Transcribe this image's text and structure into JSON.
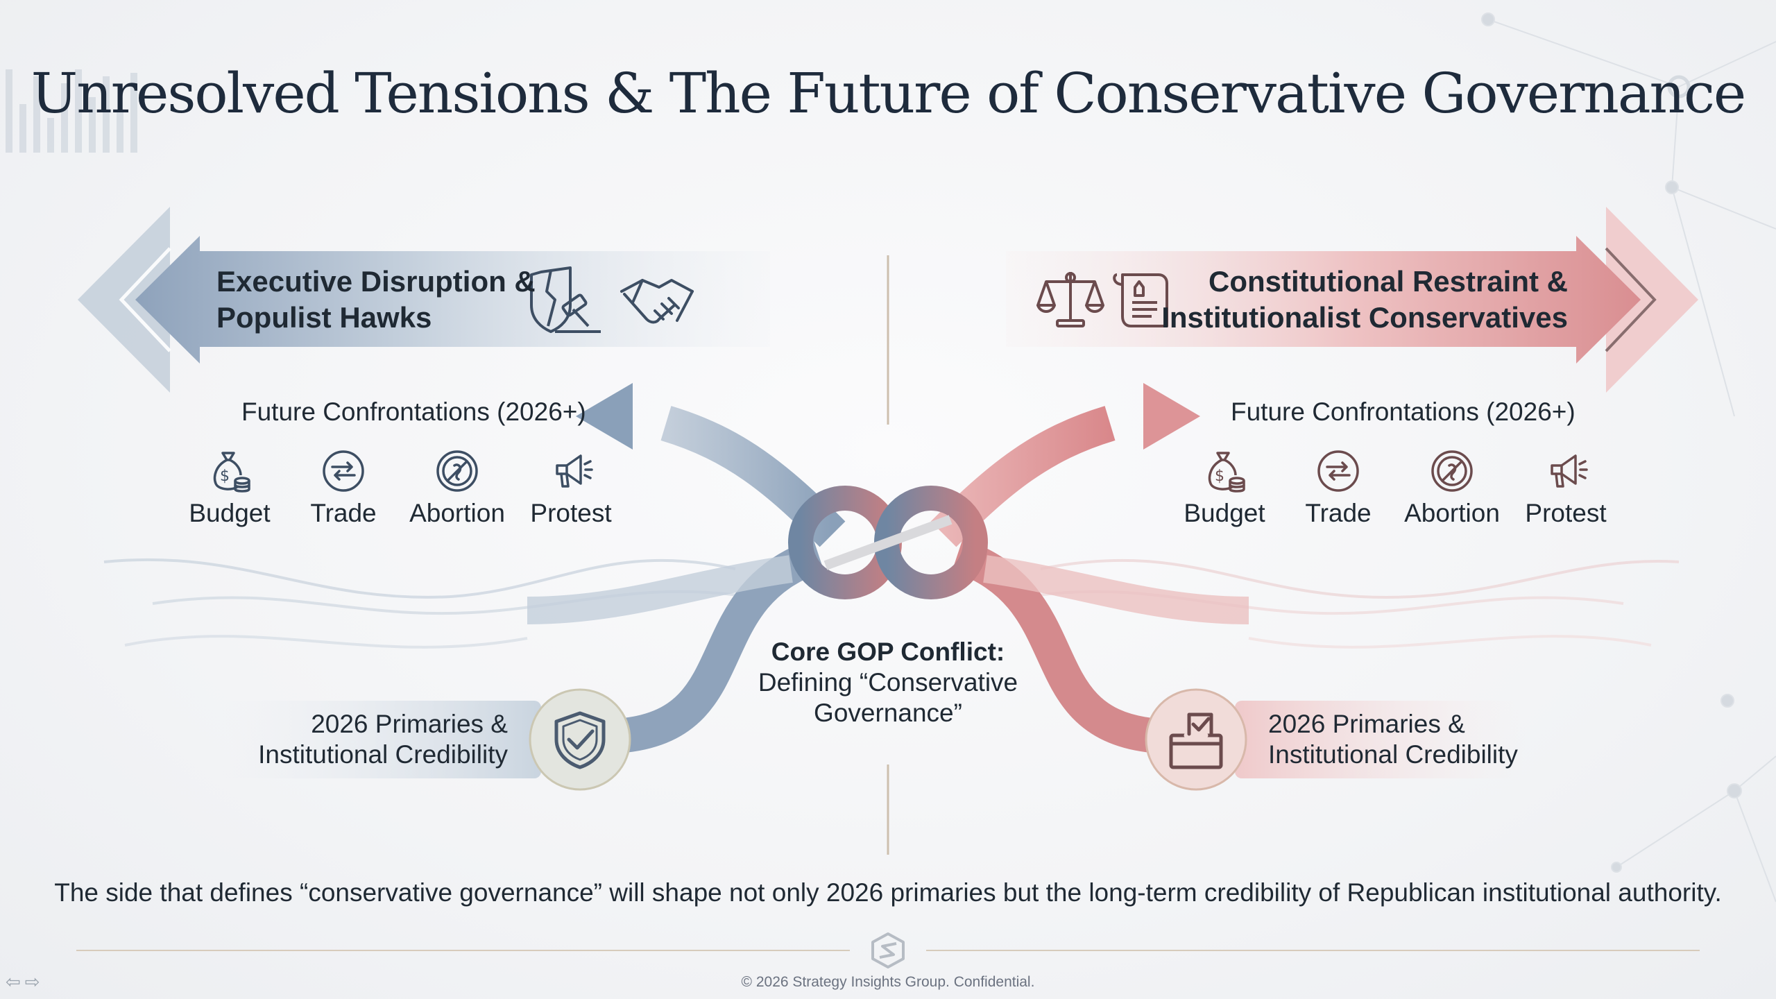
{
  "title": "Unresolved Tensions & The Future of Conservative Governance",
  "left": {
    "banner_line1": "Executive Disruption &",
    "banner_line2": "Populist Hawks",
    "banner_icons": [
      "broken-shield-gavel-icon",
      "handshake-icon"
    ],
    "future_label": "Future Confrontations (2026+)",
    "issues": [
      {
        "label": "Budget",
        "icon": "money-bag-icon"
      },
      {
        "label": "Trade",
        "icon": "exchange-arrows-icon"
      },
      {
        "label": "Abortion",
        "icon": "prohibited-icon"
      },
      {
        "label": "Protest",
        "icon": "megaphone-icon"
      }
    ],
    "primaries_line1": "2026 Primaries &",
    "primaries_line2": "Institutional Credibility",
    "primaries_icon": "shield-check-icon"
  },
  "right": {
    "banner_line1": "Constitutional Restraint &",
    "banner_line2": "Institutionalist Conservatives",
    "banner_icons": [
      "scales-icon",
      "constitution-scroll-icon"
    ],
    "future_label": "Future Confrontations (2026+)",
    "issues": [
      {
        "label": "Budget",
        "icon": "money-bag-icon"
      },
      {
        "label": "Trade",
        "icon": "exchange-arrows-icon"
      },
      {
        "label": "Abortion",
        "icon": "prohibited-icon"
      },
      {
        "label": "Protest",
        "icon": "megaphone-icon"
      }
    ],
    "primaries_line1": "2026 Primaries &",
    "primaries_line2": "Institutional Credibility",
    "primaries_icon": "ballot-box-icon"
  },
  "center": {
    "heading": "Core GOP Conflict:",
    "line1": "Defining “Conservative",
    "line2": "Governance”",
    "icon": "knot-icon"
  },
  "takeaway": "The side that defines “conservative governance” will shape not only 2026 primaries but the long-term credibility of Republican institutional authority.",
  "footer": "© 2026 Strategy Insights Group. Confidential.",
  "colors": {
    "left_accent": "#7d93ae",
    "right_accent": "#d68a8d",
    "title": "#1e2b3c"
  }
}
